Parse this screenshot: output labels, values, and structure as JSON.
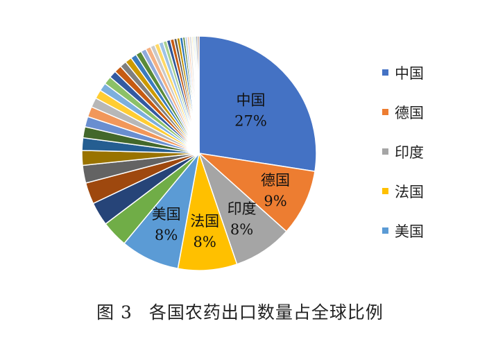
{
  "chart_data": {
    "type": "pie",
    "title": "",
    "slices": [
      {
        "name": "中国",
        "value": 27,
        "label": "27%",
        "color": "#4472C4",
        "legend": true
      },
      {
        "name": "德国",
        "value": 9,
        "label": "9%",
        "color": "#ED7D31",
        "legend": true
      },
      {
        "name": "印度",
        "value": 8,
        "label": "8%",
        "color": "#A5A5A5",
        "legend": true
      },
      {
        "name": "法国",
        "value": 8,
        "label": "8%",
        "color": "#FFC000",
        "legend": true
      },
      {
        "name": "美国",
        "value": 8,
        "label": "8%",
        "color": "#5B9BD5",
        "legend": true
      },
      {
        "name": "",
        "value": 3.6,
        "color": "#70AD47"
      },
      {
        "name": "",
        "value": 3.2,
        "color": "#264478"
      },
      {
        "name": "",
        "value": 2.9,
        "color": "#9E480E"
      },
      {
        "name": "",
        "value": 2.4,
        "color": "#636363"
      },
      {
        "name": "",
        "value": 2.0,
        "color": "#997300"
      },
      {
        "name": "",
        "value": 1.7,
        "color": "#255E91"
      },
      {
        "name": "",
        "value": 1.5,
        "color": "#43682B"
      },
      {
        "name": "",
        "value": 1.4,
        "color": "#698ED0"
      },
      {
        "name": "",
        "value": 1.4,
        "color": "#F1975A"
      },
      {
        "name": "",
        "value": 1.3,
        "color": "#B7B7B7"
      },
      {
        "name": "",
        "value": 1.2,
        "color": "#FFCD33"
      },
      {
        "name": "",
        "value": 1.1,
        "color": "#7CAFDD"
      },
      {
        "name": "",
        "value": 1.1,
        "color": "#8CC168"
      },
      {
        "name": "",
        "value": 1.0,
        "color": "#335AA1"
      },
      {
        "name": "",
        "value": 1.0,
        "color": "#C65B12"
      },
      {
        "name": "",
        "value": 0.9,
        "color": "#7F7F7F"
      },
      {
        "name": "",
        "value": 0.9,
        "color": "#CC9A00"
      },
      {
        "name": "",
        "value": 0.8,
        "color": "#3A7BBE"
      },
      {
        "name": "",
        "value": 0.8,
        "color": "#5A8A38"
      },
      {
        "name": "",
        "value": 0.7,
        "color": "#8FAADC"
      },
      {
        "name": "",
        "value": 0.7,
        "color": "#F4B183"
      },
      {
        "name": "",
        "value": 0.6,
        "color": "#C9C9C9"
      },
      {
        "name": "",
        "value": 0.6,
        "color": "#FFD966"
      },
      {
        "name": "",
        "value": 0.6,
        "color": "#9DC3E6"
      },
      {
        "name": "",
        "value": 0.5,
        "color": "#A9D18E"
      },
      {
        "name": "",
        "value": 0.5,
        "color": "#2F5597"
      },
      {
        "name": "",
        "value": 0.5,
        "color": "#C55A11"
      },
      {
        "name": "",
        "value": 0.4,
        "color": "#595959"
      },
      {
        "name": "",
        "value": 0.4,
        "color": "#BF9000"
      },
      {
        "name": "",
        "value": 0.4,
        "color": "#2E75B6"
      },
      {
        "name": "",
        "value": 0.3,
        "color": "#548235"
      },
      {
        "name": "",
        "value": 0.3,
        "color": "#B4C7E7"
      },
      {
        "name": "",
        "value": 0.3,
        "color": "#F8CBAD"
      },
      {
        "name": "",
        "value": 0.3,
        "color": "#DBDBDB"
      },
      {
        "name": "",
        "value": 0.2,
        "color": "#FFE699"
      },
      {
        "name": "",
        "value": 0.2,
        "color": "#BDD7EE"
      },
      {
        "name": "",
        "value": 0.2,
        "color": "#C5E0B4"
      },
      {
        "name": "",
        "value": 0.2,
        "color": "#1F3864"
      },
      {
        "name": "",
        "value": 0.2,
        "color": "#843C0C"
      }
    ],
    "legend_position": "right"
  },
  "caption": {
    "figure_number": "图 3",
    "text": "各国农药出口数量占全球比例"
  }
}
